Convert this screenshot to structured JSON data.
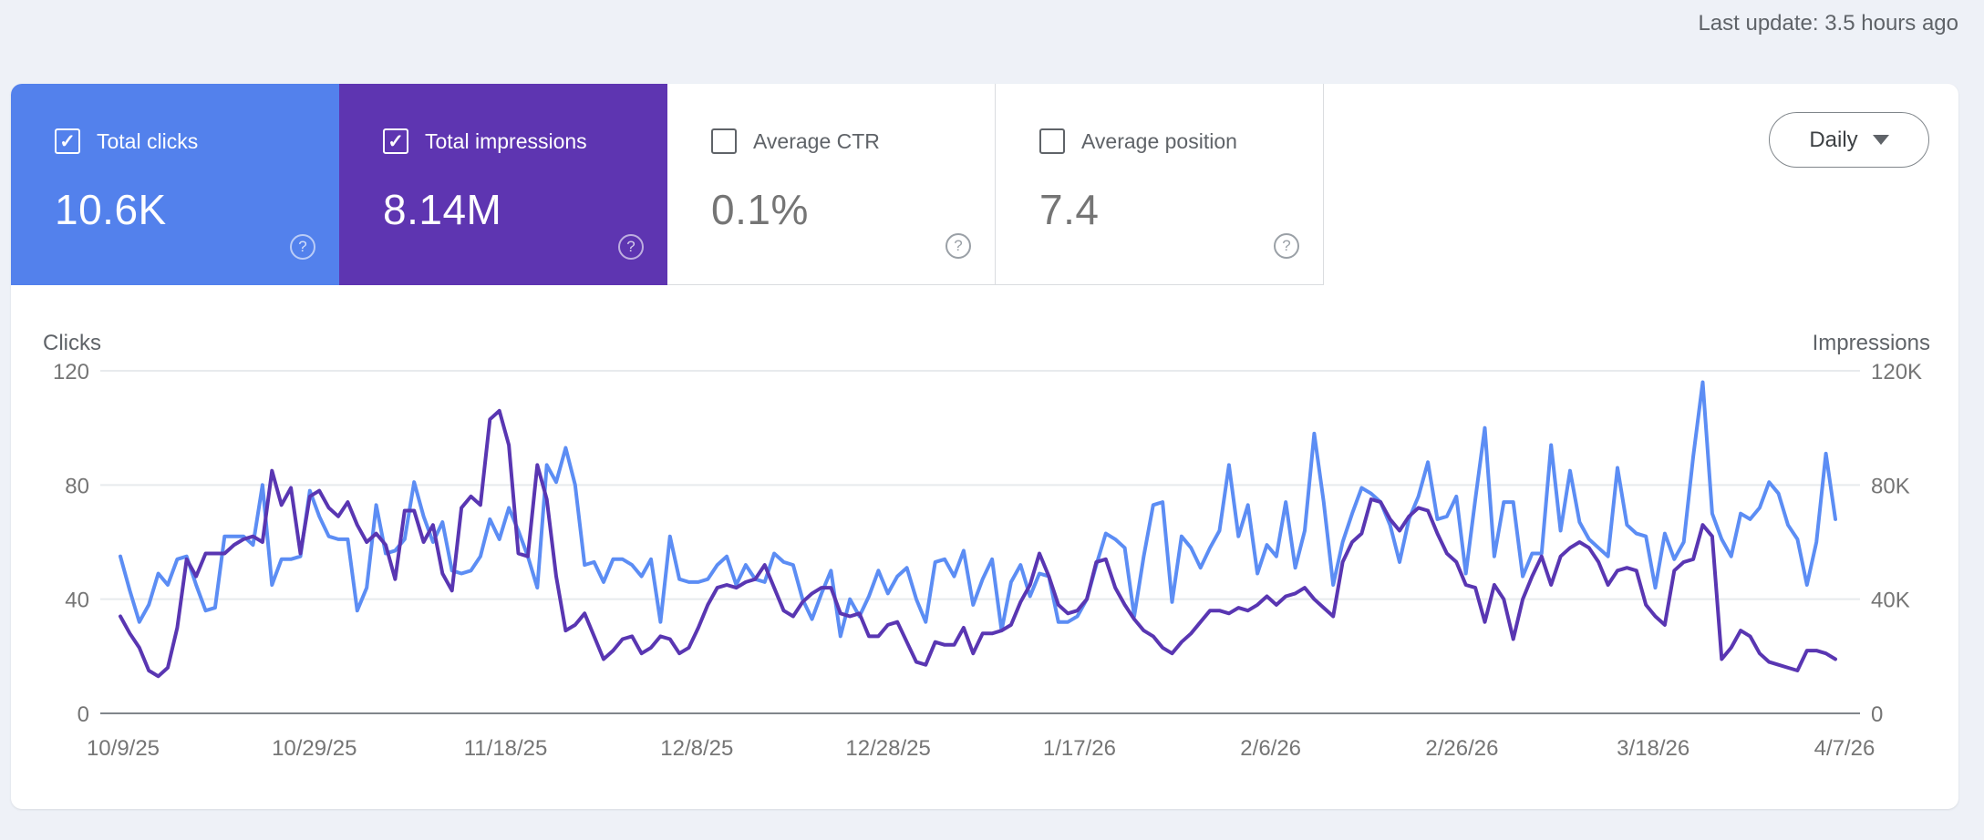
{
  "header": {
    "last_update": "Last update: 3.5 hours ago"
  },
  "cards": [
    {
      "label": "Total clicks",
      "value": "10.6K",
      "checked": true,
      "bg": "#5381ec",
      "text_on": "white"
    },
    {
      "label": "Total impressions",
      "value": "8.14M",
      "checked": true,
      "bg": "#5e35b1",
      "text_on": "white"
    },
    {
      "label": "Average CTR",
      "value": "0.1%",
      "checked": false,
      "bg": "#ffffff",
      "text_on": "gray"
    },
    {
      "label": "Average position",
      "value": "7.4",
      "checked": false,
      "bg": "#ffffff",
      "text_on": "gray"
    }
  ],
  "granularity": {
    "selected": "Daily"
  },
  "chart_data": {
    "type": "line",
    "frequency": "daily",
    "grid": true,
    "left_axis": {
      "title": "Clicks",
      "ticks": [
        "120",
        "80",
        "40",
        "0"
      ],
      "max": 120
    },
    "right_axis": {
      "title": "Impressions",
      "ticks": [
        "120K",
        "80K",
        "40K",
        "0"
      ],
      "max": 120000
    },
    "x_ticks": [
      "10/9/25",
      "10/29/25",
      "11/18/25",
      "12/8/25",
      "12/28/25",
      "1/17/26",
      "2/6/26",
      "2/26/26",
      "3/18/26",
      "4/7/26"
    ],
    "note": "daily series values estimated from plot pixels",
    "series": [
      {
        "name": "Clicks",
        "axis": "left",
        "color": "#5c8df4",
        "values": [
          55,
          43,
          32,
          38,
          49,
          45,
          54,
          55,
          45,
          36,
          37,
          62,
          62,
          62,
          59,
          80,
          45,
          54,
          54,
          55,
          78,
          69,
          62,
          61,
          61,
          36,
          44,
          73,
          56,
          57,
          61,
          81,
          69,
          60,
          67,
          50,
          49,
          50,
          55,
          68,
          61,
          72,
          64,
          55,
          44,
          87,
          81,
          93,
          80,
          52,
          53,
          46,
          54,
          54,
          52,
          48,
          54,
          32,
          62,
          47,
          46,
          46,
          47,
          52,
          55,
          45,
          52,
          47,
          46,
          56,
          53,
          52,
          40,
          33,
          42,
          50,
          27,
          40,
          34,
          41,
          50,
          42,
          48,
          51,
          40,
          32,
          53,
          54,
          48,
          57,
          38,
          47,
          54,
          29,
          46,
          52,
          41,
          49,
          48,
          32,
          32,
          34,
          40,
          52,
          63,
          61,
          58,
          34,
          55,
          73,
          74,
          39,
          62,
          58,
          51,
          58,
          64,
          87,
          62,
          73,
          49,
          59,
          55,
          74,
          51,
          64,
          98,
          74,
          45,
          60,
          70,
          79,
          77,
          74,
          66,
          53,
          68,
          76,
          88,
          68,
          69,
          76,
          49,
          75,
          100,
          55,
          74,
          74,
          48,
          56,
          56,
          94,
          64,
          85,
          67,
          61,
          58,
          55,
          86,
          66,
          63,
          62,
          44,
          63,
          54,
          60,
          90,
          116,
          70,
          61,
          55,
          70,
          68,
          72,
          81,
          77,
          66,
          61,
          45,
          60,
          91,
          68
        ]
      },
      {
        "name": "Impressions",
        "axis": "right",
        "color": "#5936b2",
        "values": [
          34000,
          28000,
          23000,
          15000,
          13000,
          16000,
          30000,
          54000,
          48000,
          56000,
          56000,
          56000,
          59000,
          61000,
          62000,
          60000,
          85000,
          73000,
          79000,
          56000,
          76000,
          78000,
          72000,
          69000,
          74000,
          66000,
          60000,
          63000,
          59000,
          47000,
          71000,
          71000,
          60000,
          66000,
          49000,
          43000,
          72000,
          76000,
          73000,
          103000,
          106000,
          94000,
          56000,
          55000,
          87000,
          75000,
          48000,
          29000,
          31000,
          35000,
          27000,
          19000,
          22000,
          26000,
          27000,
          21000,
          23000,
          27000,
          26000,
          21000,
          23000,
          30000,
          38000,
          44000,
          45000,
          44000,
          46000,
          47000,
          52000,
          44000,
          36000,
          34000,
          39000,
          42000,
          44000,
          44000,
          35000,
          34000,
          35000,
          27000,
          27000,
          31000,
          32000,
          25000,
          18000,
          17000,
          25000,
          24000,
          24000,
          30000,
          21000,
          28000,
          28000,
          29000,
          31000,
          39000,
          45000,
          56000,
          48000,
          38000,
          35000,
          36000,
          40000,
          53000,
          54000,
          44000,
          38000,
          33000,
          29000,
          27000,
          23000,
          21000,
          25000,
          28000,
          32000,
          36000,
          36000,
          35000,
          37000,
          36000,
          38000,
          41000,
          38000,
          41000,
          42000,
          44000,
          40000,
          37000,
          34000,
          53000,
          60000,
          63000,
          75000,
          74000,
          68000,
          64000,
          69000,
          72000,
          71000,
          63000,
          56000,
          53000,
          45000,
          44000,
          32000,
          45000,
          40000,
          26000,
          40000,
          48000,
          55000,
          45000,
          55000,
          58000,
          60000,
          58000,
          53000,
          45000,
          50000,
          51000,
          50000,
          38000,
          34000,
          31000,
          50000,
          53000,
          54000,
          66000,
          62000,
          19000,
          23000,
          29000,
          27000,
          21000,
          18000,
          17000,
          16000,
          15000,
          22000,
          22000,
          21000,
          19000
        ]
      }
    ]
  }
}
